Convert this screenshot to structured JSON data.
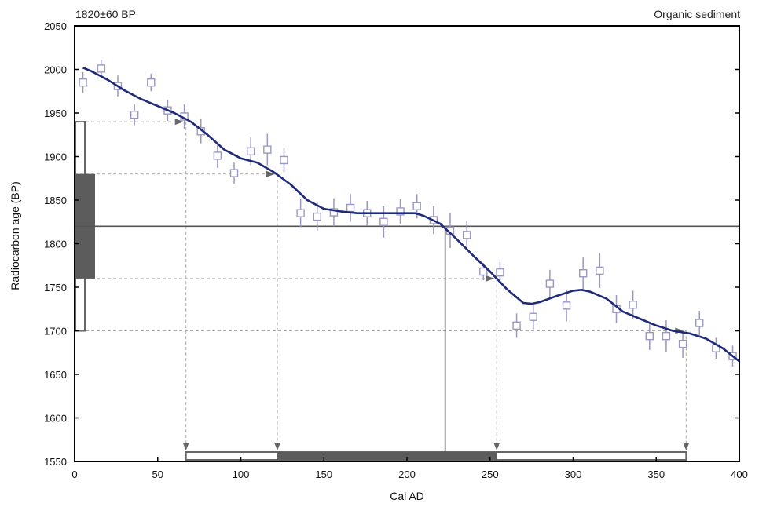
{
  "chart_data": {
    "type": "scatter",
    "sample_label": "1820±60 BP",
    "material_label": "Organic sediment",
    "xlabel": "Cal AD",
    "ylabel": "Radiocarbon age (BP)",
    "xlim": [
      0,
      400
    ],
    "ylim": [
      1550,
      2050
    ],
    "x_ticks": [
      0,
      50,
      100,
      150,
      200,
      250,
      300,
      350,
      400
    ],
    "y_ticks": [
      1550,
      1600,
      1650,
      1700,
      1750,
      1800,
      1850,
      1900,
      1950,
      2000,
      2050
    ],
    "measured_age": 1820,
    "one_sigma": [
      1760,
      1880
    ],
    "two_sigma": [
      1700,
      1940
    ],
    "calibration_curve": [
      [
        5,
        2002
      ],
      [
        10,
        1998
      ],
      [
        20,
        1988
      ],
      [
        30,
        1976
      ],
      [
        40,
        1966
      ],
      [
        50,
        1958
      ],
      [
        60,
        1950
      ],
      [
        70,
        1940
      ],
      [
        80,
        1925
      ],
      [
        90,
        1908
      ],
      [
        100,
        1898
      ],
      [
        110,
        1893
      ],
      [
        120,
        1882
      ],
      [
        130,
        1868
      ],
      [
        140,
        1850
      ],
      [
        150,
        1840
      ],
      [
        160,
        1837
      ],
      [
        170,
        1835
      ],
      [
        180,
        1835
      ],
      [
        190,
        1835
      ],
      [
        200,
        1835
      ],
      [
        205,
        1835
      ],
      [
        210,
        1832
      ],
      [
        220,
        1823
      ],
      [
        230,
        1805
      ],
      [
        240,
        1786
      ],
      [
        250,
        1768
      ],
      [
        260,
        1748
      ],
      [
        270,
        1732
      ],
      [
        275,
        1731
      ],
      [
        280,
        1733
      ],
      [
        290,
        1740
      ],
      [
        300,
        1746
      ],
      [
        305,
        1747
      ],
      [
        310,
        1745
      ],
      [
        320,
        1737
      ],
      [
        330,
        1722
      ],
      [
        340,
        1714
      ],
      [
        350,
        1706
      ],
      [
        360,
        1700
      ],
      [
        370,
        1697
      ],
      [
        380,
        1691
      ],
      [
        390,
        1680
      ],
      [
        400,
        1665
      ]
    ],
    "data_points": [
      {
        "x": 5,
        "y": 1985,
        "err": 12
      },
      {
        "x": 16,
        "y": 2001,
        "err": 10
      },
      {
        "x": 26,
        "y": 1981,
        "err": 12
      },
      {
        "x": 36,
        "y": 1948,
        "err": 12
      },
      {
        "x": 46,
        "y": 1985,
        "err": 10
      },
      {
        "x": 56,
        "y": 1953,
        "err": 12
      },
      {
        "x": 66,
        "y": 1946,
        "err": 14
      },
      {
        "x": 76,
        "y": 1929,
        "err": 14
      },
      {
        "x": 86,
        "y": 1901,
        "err": 14
      },
      {
        "x": 96,
        "y": 1881,
        "err": 12
      },
      {
        "x": 106,
        "y": 1906,
        "err": 16
      },
      {
        "x": 116,
        "y": 1908,
        "err": 18
      },
      {
        "x": 126,
        "y": 1896,
        "err": 14
      },
      {
        "x": 136,
        "y": 1835,
        "err": 16
      },
      {
        "x": 146,
        "y": 1831,
        "err": 16
      },
      {
        "x": 156,
        "y": 1836,
        "err": 16
      },
      {
        "x": 166,
        "y": 1841,
        "err": 16
      },
      {
        "x": 176,
        "y": 1835,
        "err": 14
      },
      {
        "x": 186,
        "y": 1825,
        "err": 18
      },
      {
        "x": 196,
        "y": 1837,
        "err": 14
      },
      {
        "x": 206,
        "y": 1843,
        "err": 14
      },
      {
        "x": 216,
        "y": 1827,
        "err": 16
      },
      {
        "x": 226,
        "y": 1815,
        "err": 20
      },
      {
        "x": 236,
        "y": 1810,
        "err": 16
      },
      {
        "x": 246,
        "y": 1768,
        "err": 10
      },
      {
        "x": 256,
        "y": 1767,
        "err": 12
      },
      {
        "x": 266,
        "y": 1706,
        "err": 14
      },
      {
        "x": 276,
        "y": 1716,
        "err": 16
      },
      {
        "x": 286,
        "y": 1754,
        "err": 16
      },
      {
        "x": 296,
        "y": 1729,
        "err": 18
      },
      {
        "x": 306,
        "y": 1766,
        "err": 18
      },
      {
        "x": 316,
        "y": 1769,
        "err": 20
      },
      {
        "x": 326,
        "y": 1725,
        "err": 16
      },
      {
        "x": 336,
        "y": 1730,
        "err": 16
      },
      {
        "x": 346,
        "y": 1694,
        "err": 16
      },
      {
        "x": 356,
        "y": 1694,
        "err": 18
      },
      {
        "x": 366,
        "y": 1685,
        "err": 16
      },
      {
        "x": 376,
        "y": 1709,
        "err": 14
      },
      {
        "x": 386,
        "y": 1680,
        "err": 12
      },
      {
        "x": 396,
        "y": 1671,
        "err": 12
      }
    ],
    "one_sigma_ranges": [
      [
        122,
        254
      ]
    ],
    "two_sigma_ranges": [
      [
        67,
        368
      ]
    ],
    "intercept_cal_age": 223,
    "one_sigma_curve_hits": [
      [
        122,
        1880
      ],
      [
        254,
        1760
      ]
    ],
    "two_sigma_curve_hits": [
      [
        67,
        1940
      ],
      [
        368,
        1700
      ]
    ],
    "grid": false,
    "colors": {
      "curve": "#1f2a78",
      "points": "#9a97c2",
      "axis": "#000000",
      "one_sigma_fill": "#5c5c5c",
      "box_outline": "#666666",
      "dashed": "#aaaaaa"
    }
  }
}
